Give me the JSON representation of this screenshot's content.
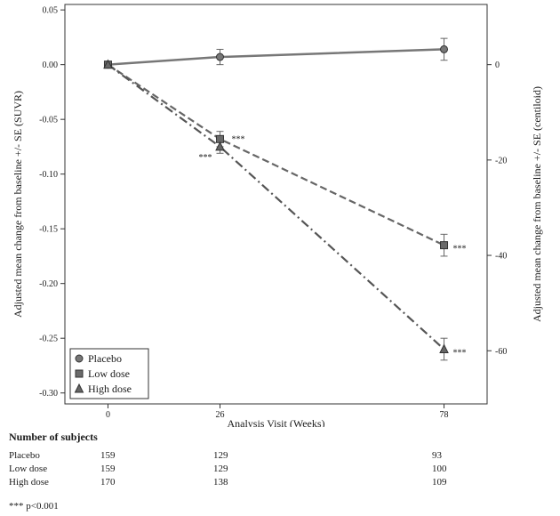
{
  "chart_data": {
    "type": "line",
    "title": "",
    "xlabel": "Analysis Visit (Weeks)",
    "ylabel_left": "Adjusted mean change from baseline +/- SE (SUVR)",
    "ylabel_right": "Adjusted mean change from baseline +/- SE (centiloid)",
    "x": [
      0,
      26,
      78
    ],
    "x_ticks": [
      "0",
      "26",
      "78"
    ],
    "xlim": [
      -10,
      88
    ],
    "ylim": [
      -0.31,
      0.055
    ],
    "y_ticks": [
      0.05,
      0.0,
      -0.05,
      -0.1,
      -0.15,
      -0.2,
      -0.25,
      -0.3
    ],
    "y_tick_labels": [
      "0.05",
      "0.00",
      "-0.05",
      "-0.10",
      "-0.15",
      "-0.20",
      "-0.25",
      "-0.30"
    ],
    "y2_ticks": [
      0,
      -20,
      -40,
      -60
    ],
    "y2_tick_labels": [
      "0",
      "-20",
      "-40",
      "-60"
    ],
    "y2_per_y": 229.5,
    "series": [
      {
        "name": "Placebo",
        "marker": "circle",
        "line": "solid",
        "color": "#777777",
        "values": [
          0.0,
          0.007,
          0.014
        ],
        "se": [
          0.0,
          0.007,
          0.01
        ],
        "annotations": [
          "",
          "",
          ""
        ]
      },
      {
        "name": "Low dose",
        "marker": "square",
        "line": "dashed",
        "color": "#666666",
        "values": [
          0.0,
          -0.068,
          -0.165
        ],
        "se": [
          0.0,
          0.007,
          0.01
        ],
        "annotations": [
          "",
          "***",
          "***"
        ]
      },
      {
        "name": "High dose",
        "marker": "triangle",
        "line": "dashdot",
        "color": "#555555",
        "values": [
          0.0,
          -0.075,
          -0.26
        ],
        "se": [
          0.0,
          0.006,
          0.01
        ],
        "annotations": [
          "",
          "***",
          "***"
        ]
      }
    ],
    "legend": {
      "position": "bottom-left",
      "entries": [
        {
          "label": "Placebo",
          "marker": "circle"
        },
        {
          "label": "Low dose",
          "marker": "square"
        },
        {
          "label": "High dose",
          "marker": "triangle"
        }
      ]
    }
  },
  "subjects": {
    "heading": "Number of subjects",
    "rows": [
      {
        "label": "Placebo",
        "w0": "159",
        "w26": "129",
        "w78": "93"
      },
      {
        "label": "Low dose",
        "w0": "159",
        "w26": "129",
        "w78": "100"
      },
      {
        "label": "High dose",
        "w0": "170",
        "w26": "138",
        "w78": "109"
      }
    ]
  },
  "footnote": "*** p<0.001"
}
